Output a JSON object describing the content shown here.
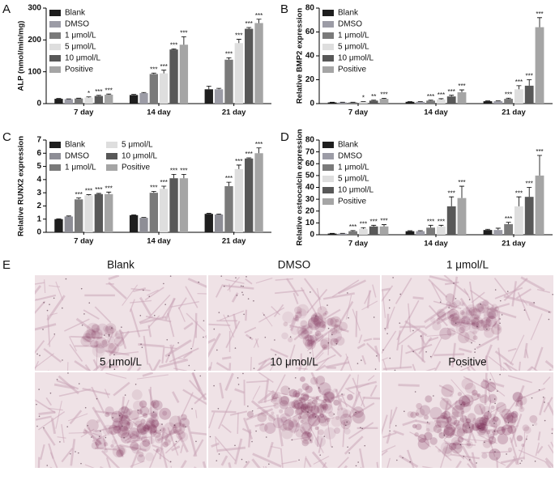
{
  "chart_data": [
    {
      "type": "bar",
      "panel_label": "A",
      "ylabel": "ALP (nmol/min/mg)",
      "categories": [
        "7 day",
        "14 day",
        "21 day"
      ],
      "ylim": [
        0,
        300
      ],
      "yticks": [
        0,
        100,
        200,
        300
      ],
      "legend": "upper left",
      "legend_columns": 1,
      "series": [
        {
          "name": "Blank",
          "color": "#1e1e1e",
          "values": [
            15,
            27,
            45
          ],
          "errors": [
            1,
            2,
            10
          ],
          "annotations": [
            null,
            null,
            null
          ]
        },
        {
          "name": "DMSO",
          "color": "#9c9ca6",
          "values": [
            14,
            33,
            45
          ],
          "errors": [
            1,
            2,
            3
          ],
          "annotations": [
            null,
            null,
            null
          ]
        },
        {
          "name": "1 μmol/L",
          "color": "#7a7a7a",
          "values": [
            16,
            93,
            138
          ],
          "errors": [
            1,
            3,
            6
          ],
          "annotations": [
            null,
            "***",
            "***"
          ]
        },
        {
          "name": "5 μmol/L",
          "color": "#dedede",
          "values": [
            19,
            95,
            190
          ],
          "errors": [
            2,
            10,
            12
          ],
          "annotations": [
            "*",
            "***",
            "***"
          ]
        },
        {
          "name": "10 μmol/L",
          "color": "#585858",
          "values": [
            24,
            170,
            235
          ],
          "errors": [
            2,
            2,
            4
          ],
          "annotations": [
            "***",
            "***",
            "***"
          ]
        },
        {
          "name": "Positive",
          "color": "#a5a5a5",
          "values": [
            28,
            185,
            253
          ],
          "errors": [
            2,
            25,
            12
          ],
          "annotations": [
            "***",
            "***",
            "***"
          ]
        }
      ]
    },
    {
      "type": "bar",
      "panel_label": "B",
      "ylabel": "Relative BMP2 expression",
      "categories": [
        "7 day",
        "14 day",
        "21 day"
      ],
      "ylim": [
        0,
        80
      ],
      "yticks": [
        0,
        20,
        40,
        60,
        80
      ],
      "legend": "upper left",
      "legend_columns": 1,
      "series": [
        {
          "name": "Blank",
          "color": "#1e1e1e",
          "values": [
            1,
            1.5,
            2
          ],
          "errors": [
            0.2,
            0.2,
            0.3
          ],
          "annotations": [
            null,
            null,
            null
          ]
        },
        {
          "name": "DMSO",
          "color": "#9c9ca6",
          "values": [
            1,
            1.5,
            2
          ],
          "errors": [
            0.2,
            0.2,
            0.3
          ],
          "annotations": [
            null,
            null,
            null
          ]
        },
        {
          "name": "1 μmol/L",
          "color": "#7a7a7a",
          "values": [
            1,
            2.5,
            4
          ],
          "errors": [
            0.2,
            0.4,
            0.6
          ],
          "annotations": [
            null,
            "***",
            "***"
          ]
        },
        {
          "name": "5 μmol/L",
          "color": "#dedede",
          "values": [
            1.5,
            3.5,
            12
          ],
          "errors": [
            0.3,
            0.6,
            3
          ],
          "annotations": [
            "*",
            "***",
            "***"
          ]
        },
        {
          "name": "10 μmol/L",
          "color": "#585858",
          "values": [
            2.5,
            6,
            15
          ],
          "errors": [
            0.4,
            1,
            5
          ],
          "annotations": [
            "**",
            "***",
            "***"
          ]
        },
        {
          "name": "Positive",
          "color": "#a5a5a5",
          "values": [
            4,
            9.5,
            64
          ],
          "errors": [
            0.5,
            2,
            8
          ],
          "annotations": [
            "***",
            "***",
            "***"
          ]
        }
      ]
    },
    {
      "type": "bar",
      "panel_label": "C",
      "ylabel": "Relative RUNX2 expression",
      "categories": [
        "7 day",
        "14 day",
        "21 day"
      ],
      "ylim": [
        0,
        7
      ],
      "yticks": [
        0,
        1,
        2,
        3,
        4,
        5,
        6,
        7
      ],
      "legend": "upper left",
      "legend_columns": 2,
      "series": [
        {
          "name": "Blank",
          "color": "#1e1e1e",
          "values": [
            1,
            1.3,
            1.4
          ],
          "errors": [
            0.03,
            0.03,
            0.04
          ],
          "annotations": [
            null,
            null,
            null
          ]
        },
        {
          "name": "DMSO",
          "color": "#8e8e96",
          "values": [
            1.2,
            1.1,
            1.35
          ],
          "errors": [
            0.04,
            0.03,
            0.04
          ],
          "annotations": [
            null,
            null,
            null
          ]
        },
        {
          "name": "1 μmol/L",
          "color": "#7a7a7a",
          "values": [
            2.5,
            3.0,
            3.5
          ],
          "errors": [
            0.1,
            0.1,
            0.3
          ],
          "annotations": [
            "***",
            "***",
            "***"
          ]
        },
        {
          "name": "5 μmol/L",
          "color": "#dedede",
          "values": [
            2.8,
            3.3,
            4.8
          ],
          "errors": [
            0.05,
            0.2,
            0.3
          ],
          "annotations": [
            "***",
            "***",
            "***"
          ]
        },
        {
          "name": "10 μmol/L",
          "color": "#585858",
          "values": [
            2.9,
            4.1,
            5.6
          ],
          "errors": [
            0.05,
            0.3,
            0.05
          ],
          "annotations": [
            "***",
            "***",
            "***"
          ]
        },
        {
          "name": "Positive",
          "color": "#a5a5a5",
          "values": [
            2.9,
            4.1,
            6.0
          ],
          "errors": [
            0.15,
            0.3,
            0.4
          ],
          "annotations": [
            "***",
            "***",
            "***"
          ]
        }
      ]
    },
    {
      "type": "bar",
      "panel_label": "D",
      "ylabel": "Relative osteocalcin expression",
      "categories": [
        "7 day",
        "14 day",
        "21 day"
      ],
      "ylim": [
        0,
        80
      ],
      "yticks": [
        0,
        10,
        20,
        30,
        40,
        50,
        60,
        70,
        80
      ],
      "legend": "upper left",
      "legend_columns": 1,
      "series": [
        {
          "name": "Blank",
          "color": "#1e1e1e",
          "values": [
            1,
            3,
            4
          ],
          "errors": [
            0.2,
            0.4,
            0.6
          ],
          "annotations": [
            null,
            null,
            null
          ]
        },
        {
          "name": "DMSO",
          "color": "#9c9ca6",
          "values": [
            1,
            3,
            4
          ],
          "errors": [
            0.2,
            0.4,
            1.5
          ],
          "annotations": [
            null,
            null,
            null
          ]
        },
        {
          "name": "1 μmol/L",
          "color": "#7a7a7a",
          "values": [
            3,
            6,
            9
          ],
          "errors": [
            0.5,
            2,
            1.5
          ],
          "annotations": [
            "***",
            "***",
            "***"
          ]
        },
        {
          "name": "5 μmol/L",
          "color": "#dedede",
          "values": [
            5,
            7,
            24
          ],
          "errors": [
            1,
            1,
            8
          ],
          "annotations": [
            "***",
            "***",
            "***"
          ]
        },
        {
          "name": "10 μmol/L",
          "color": "#585858",
          "values": [
            7,
            24,
            32
          ],
          "errors": [
            1,
            8,
            8
          ],
          "annotations": [
            "***",
            "***",
            "***"
          ]
        },
        {
          "name": "Positive",
          "color": "#a5a5a5",
          "values": [
            7,
            31,
            50
          ],
          "errors": [
            1.5,
            10,
            17
          ],
          "annotations": [
            "***",
            "***",
            "***"
          ]
        }
      ]
    }
  ],
  "images": {
    "panel_label": "E",
    "panels": [
      {
        "label": "Blank"
      },
      {
        "label": "DMSO"
      },
      {
        "label": "1 μmol/L"
      },
      {
        "label": "5 μmol/L"
      },
      {
        "label": "10 μmol/L"
      },
      {
        "label": "Positive"
      }
    ]
  }
}
